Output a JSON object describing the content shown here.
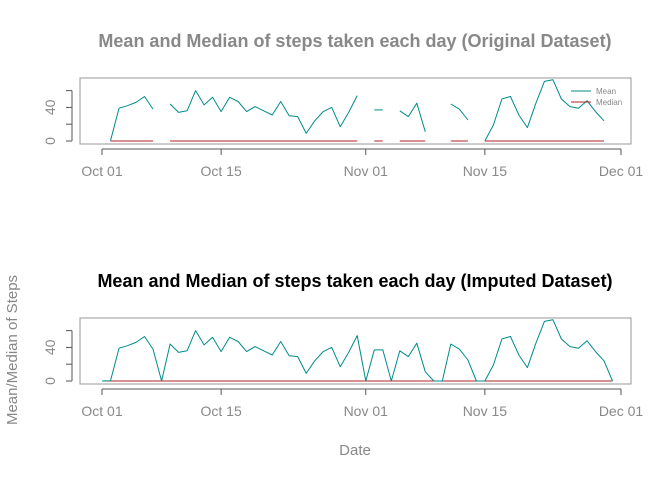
{
  "shared": {
    "ylabel": "Mean/Median of Steps",
    "xlabel": "Date",
    "x_ticks": [
      {
        "date": "2012-10-01",
        "label": "Oct 01"
      },
      {
        "date": "2012-10-15",
        "label": "Oct 15"
      },
      {
        "date": "2012-11-01",
        "label": "Nov 01"
      },
      {
        "date": "2012-11-15",
        "label": "Nov 15"
      },
      {
        "date": "2012-12-01",
        "label": "Dec 01"
      }
    ],
    "y_ticks": [
      {
        "value": 0,
        "label": "0"
      },
      {
        "value": 40,
        "label": "40"
      }
    ],
    "colors": {
      "mean": "#008b8b",
      "median": "#b22222",
      "axis": "#555555",
      "text_gray": "#888888",
      "title_black": "#000000",
      "box": "#999999"
    }
  },
  "chart_data": [
    {
      "type": "line",
      "title": "Mean and Median of steps taken each day (Original Dataset)",
      "xlabel": "",
      "ylabel": "",
      "xlim": [
        "2012-10-01",
        "2012-12-01"
      ],
      "ylim": [
        0,
        75
      ],
      "legend": {
        "position": "top-right",
        "entries": [
          "Mean",
          "Median"
        ]
      },
      "series": [
        {
          "name": "Mean",
          "color": "#008b8b",
          "points": [
            [
              "2012-10-02",
              0.4
            ],
            [
              "2012-10-03",
              39
            ],
            [
              "2012-10-04",
              42
            ],
            [
              "2012-10-05",
              46
            ],
            [
              "2012-10-06",
              53
            ],
            [
              "2012-10-07",
              38
            ],
            [
              "2012-10-08",
              null
            ],
            [
              "2012-10-09",
              44
            ],
            [
              "2012-10-10",
              34
            ],
            [
              "2012-10-11",
              36
            ],
            [
              "2012-10-12",
              60
            ],
            [
              "2012-10-13",
              43
            ],
            [
              "2012-10-14",
              52
            ],
            [
              "2012-10-15",
              35
            ],
            [
              "2012-10-16",
              52
            ],
            [
              "2012-10-17",
              47
            ],
            [
              "2012-10-18",
              35
            ],
            [
              "2012-10-19",
              41
            ],
            [
              "2012-10-20",
              36
            ],
            [
              "2012-10-21",
              31
            ],
            [
              "2012-10-22",
              47
            ],
            [
              "2012-10-23",
              30
            ],
            [
              "2012-10-24",
              29
            ],
            [
              "2012-10-25",
              9
            ],
            [
              "2012-10-26",
              24
            ],
            [
              "2012-10-27",
              35
            ],
            [
              "2012-10-28",
              40
            ],
            [
              "2012-10-29",
              17
            ],
            [
              "2012-10-30",
              34
            ],
            [
              "2012-10-31",
              54
            ],
            [
              "2012-11-01",
              null
            ],
            [
              "2012-11-02",
              37
            ],
            [
              "2012-11-03",
              37
            ],
            [
              "2012-11-04",
              null
            ],
            [
              "2012-11-05",
              36
            ],
            [
              "2012-11-06",
              29
            ],
            [
              "2012-11-07",
              45
            ],
            [
              "2012-11-08",
              11
            ],
            [
              "2012-11-09",
              null
            ],
            [
              "2012-11-10",
              null
            ],
            [
              "2012-11-11",
              44
            ],
            [
              "2012-11-12",
              38
            ],
            [
              "2012-11-13",
              25
            ],
            [
              "2012-11-14",
              null
            ],
            [
              "2012-11-15",
              0.1
            ],
            [
              "2012-11-16",
              19
            ],
            [
              "2012-11-17",
              50
            ],
            [
              "2012-11-18",
              53
            ],
            [
              "2012-11-19",
              31
            ],
            [
              "2012-11-20",
              16
            ],
            [
              "2012-11-21",
              45
            ],
            [
              "2012-11-22",
              71
            ],
            [
              "2012-11-23",
              73
            ],
            [
              "2012-11-24",
              50
            ],
            [
              "2012-11-25",
              41
            ],
            [
              "2012-11-26",
              39
            ],
            [
              "2012-11-27",
              48
            ],
            [
              "2012-11-28",
              35
            ],
            [
              "2012-11-29",
              24
            ],
            [
              "2012-11-30",
              null
            ]
          ]
        },
        {
          "name": "Median",
          "color": "#b22222",
          "constant_value": 0,
          "segments": [
            [
              "2012-10-02",
              "2012-10-07"
            ],
            [
              "2012-10-09",
              "2012-10-31"
            ],
            [
              "2012-11-02",
              "2012-11-03"
            ],
            [
              "2012-11-05",
              "2012-11-08"
            ],
            [
              "2012-11-11",
              "2012-11-13"
            ],
            [
              "2012-11-15",
              "2012-11-29"
            ]
          ]
        }
      ]
    },
    {
      "type": "line",
      "title": "Mean and Median of steps taken each day (Imputed Dataset)",
      "xlabel": "",
      "ylabel": "",
      "xlim": [
        "2012-10-01",
        "2012-12-01"
      ],
      "ylim": [
        0,
        75
      ],
      "series": [
        {
          "name": "Mean",
          "color": "#008b8b",
          "points": [
            [
              "2012-10-01",
              0
            ],
            [
              "2012-10-02",
              0.4
            ],
            [
              "2012-10-03",
              39
            ],
            [
              "2012-10-04",
              42
            ],
            [
              "2012-10-05",
              46
            ],
            [
              "2012-10-06",
              53
            ],
            [
              "2012-10-07",
              38
            ],
            [
              "2012-10-08",
              0
            ],
            [
              "2012-10-09",
              44
            ],
            [
              "2012-10-10",
              34
            ],
            [
              "2012-10-11",
              36
            ],
            [
              "2012-10-12",
              60
            ],
            [
              "2012-10-13",
              43
            ],
            [
              "2012-10-14",
              52
            ],
            [
              "2012-10-15",
              35
            ],
            [
              "2012-10-16",
              52
            ],
            [
              "2012-10-17",
              47
            ],
            [
              "2012-10-18",
              35
            ],
            [
              "2012-10-19",
              41
            ],
            [
              "2012-10-20",
              36
            ],
            [
              "2012-10-21",
              31
            ],
            [
              "2012-10-22",
              47
            ],
            [
              "2012-10-23",
              30
            ],
            [
              "2012-10-24",
              29
            ],
            [
              "2012-10-25",
              9
            ],
            [
              "2012-10-26",
              24
            ],
            [
              "2012-10-27",
              35
            ],
            [
              "2012-10-28",
              40
            ],
            [
              "2012-10-29",
              17
            ],
            [
              "2012-10-30",
              34
            ],
            [
              "2012-10-31",
              54
            ],
            [
              "2012-11-01",
              0
            ],
            [
              "2012-11-02",
              37
            ],
            [
              "2012-11-03",
              37
            ],
            [
              "2012-11-04",
              0
            ],
            [
              "2012-11-05",
              36
            ],
            [
              "2012-11-06",
              29
            ],
            [
              "2012-11-07",
              45
            ],
            [
              "2012-11-08",
              11
            ],
            [
              "2012-11-09",
              0
            ],
            [
              "2012-11-10",
              0
            ],
            [
              "2012-11-11",
              44
            ],
            [
              "2012-11-12",
              38
            ],
            [
              "2012-11-13",
              25
            ],
            [
              "2012-11-14",
              0
            ],
            [
              "2012-11-15",
              0.1
            ],
            [
              "2012-11-16",
              19
            ],
            [
              "2012-11-17",
              50
            ],
            [
              "2012-11-18",
              53
            ],
            [
              "2012-11-19",
              31
            ],
            [
              "2012-11-20",
              16
            ],
            [
              "2012-11-21",
              45
            ],
            [
              "2012-11-22",
              71
            ],
            [
              "2012-11-23",
              73
            ],
            [
              "2012-11-24",
              50
            ],
            [
              "2012-11-25",
              41
            ],
            [
              "2012-11-26",
              39
            ],
            [
              "2012-11-27",
              48
            ],
            [
              "2012-11-28",
              35
            ],
            [
              "2012-11-29",
              24
            ],
            [
              "2012-11-30",
              0
            ]
          ]
        },
        {
          "name": "Median",
          "color": "#b22222",
          "constant_value": 0,
          "segments": [
            [
              "2012-10-01",
              "2012-11-30"
            ]
          ]
        }
      ]
    }
  ]
}
